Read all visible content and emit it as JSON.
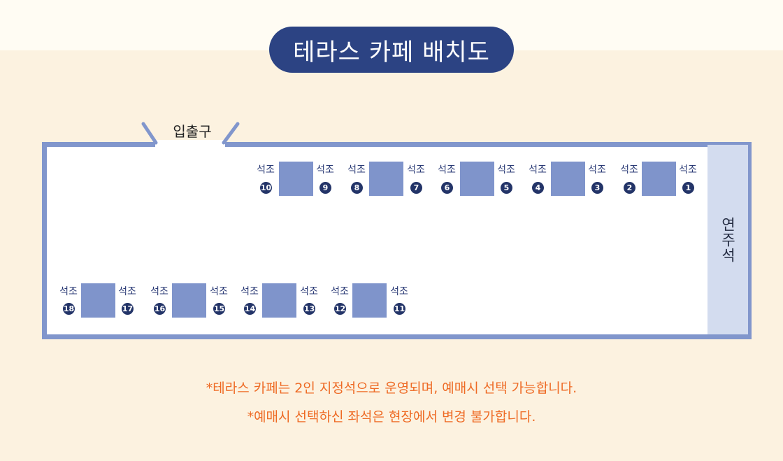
{
  "title": "테라스 카페 배치도",
  "entrance_label": "입출구",
  "stage_label": "연주석",
  "seats": [
    {
      "label": "석조",
      "number": "1"
    },
    {
      "label": "석조",
      "number": "2"
    },
    {
      "label": "석조",
      "number": "3"
    },
    {
      "label": "석조",
      "number": "4"
    },
    {
      "label": "석조",
      "number": "5"
    },
    {
      "label": "석조",
      "number": "6"
    },
    {
      "label": "석조",
      "number": "7"
    },
    {
      "label": "석조",
      "number": "8"
    },
    {
      "label": "석조",
      "number": "9"
    },
    {
      "label": "석조",
      "number": "10"
    },
    {
      "label": "석조",
      "number": "11"
    },
    {
      "label": "석조",
      "number": "12"
    },
    {
      "label": "석조",
      "number": "13"
    },
    {
      "label": "석조",
      "number": "14"
    },
    {
      "label": "석조",
      "number": "15"
    },
    {
      "label": "석조",
      "number": "16"
    },
    {
      "label": "석조",
      "number": "17"
    },
    {
      "label": "석조",
      "number": "18"
    }
  ],
  "notes": [
    "*테라스 카페는 2인 지정석으로 운영되며, 예매시 선택 가능합니다.",
    "*예매시 선택하신 좌석은 현장에서 변경 불가합니다."
  ],
  "colors": {
    "title_bg": "#2c4383",
    "floor_border": "#8196cc",
    "table": "#7f94cb",
    "stage": "#d3dcef",
    "seat_number_bg": "#233468",
    "note_text": "#ee6a24",
    "background": "#fcf2e0"
  }
}
